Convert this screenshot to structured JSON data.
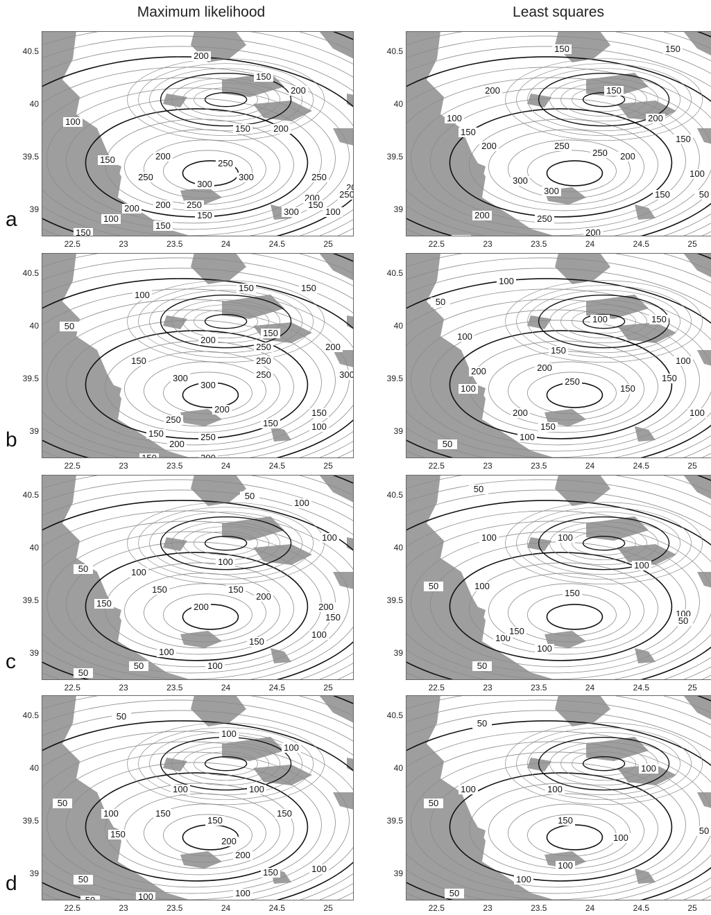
{
  "columns": [
    {
      "title": "Maximum  likelihood"
    },
    {
      "title": "Least squares"
    }
  ],
  "rows": [
    {
      "letter": "a"
    },
    {
      "letter": "b"
    },
    {
      "letter": "c"
    },
    {
      "letter": "d"
    }
  ],
  "axes": {
    "x_ticks": [
      "22.5",
      "23",
      "23.5",
      "24",
      "24.5",
      "25"
    ],
    "y_ticks": [
      "40.5",
      "40",
      "39.5",
      "39"
    ],
    "x_range": [
      22.2,
      25.25
    ],
    "y_range": [
      38.75,
      40.7
    ]
  },
  "colors": {
    "land": "#9e9e9e",
    "sea": "#ffffff",
    "major_contour": "#111111",
    "minor_contour": "#8a8a8a"
  },
  "panels": [
    {
      "id": "a-ml",
      "labels": [
        "100",
        "150",
        "200",
        "150",
        "200",
        "150",
        "200",
        "200",
        "250",
        "300",
        "250",
        "300",
        "250",
        "200",
        "300",
        "200",
        "250",
        "150",
        "100",
        "150",
        "200",
        "250",
        "200",
        "150",
        "100",
        "100",
        "150"
      ]
    },
    {
      "id": "a-ls",
      "labels": [
        "150",
        "150",
        "200",
        "150",
        "200",
        "100",
        "150",
        "200",
        "250",
        "300",
        "250",
        "200",
        "150",
        "150",
        "100",
        "50",
        "200",
        "300",
        "250",
        "200",
        "150",
        "100",
        "150",
        "200"
      ]
    },
    {
      "id": "b-ml",
      "labels": [
        "50",
        "100",
        "150",
        "150",
        "150",
        "150",
        "200",
        "250",
        "250",
        "200",
        "300",
        "300",
        "250",
        "300",
        "250",
        "200",
        "150",
        "150",
        "100",
        "150",
        "200",
        "250",
        "200",
        "150",
        "100",
        "100"
      ]
    },
    {
      "id": "b-ls",
      "labels": [
        "100",
        "50",
        "100",
        "150",
        "100",
        "150",
        "200",
        "250",
        "200",
        "150",
        "100",
        "100",
        "50",
        "150",
        "100",
        "200",
        "150",
        "100",
        "50"
      ]
    },
    {
      "id": "c-ml",
      "labels": [
        "50",
        "100",
        "100",
        "100",
        "50",
        "100",
        "150",
        "150",
        "150",
        "200",
        "200",
        "200",
        "150",
        "100",
        "150",
        "100",
        "50",
        "100",
        "50"
      ]
    },
    {
      "id": "c-ls",
      "labels": [
        "50",
        "100",
        "100",
        "100",
        "50",
        "100",
        "150",
        "100",
        "50",
        "100",
        "150",
        "100",
        "50"
      ]
    },
    {
      "id": "d-ml",
      "labels": [
        "50",
        "100",
        "100",
        "50",
        "100",
        "100",
        "150",
        "150",
        "150",
        "200",
        "200",
        "100",
        "150",
        "150",
        "100",
        "50",
        "100",
        "100",
        "50"
      ]
    },
    {
      "id": "d-ls",
      "labels": [
        "50",
        "100",
        "50",
        "100",
        "100",
        "150",
        "100",
        "50",
        "100",
        "100",
        "50"
      ]
    }
  ]
}
